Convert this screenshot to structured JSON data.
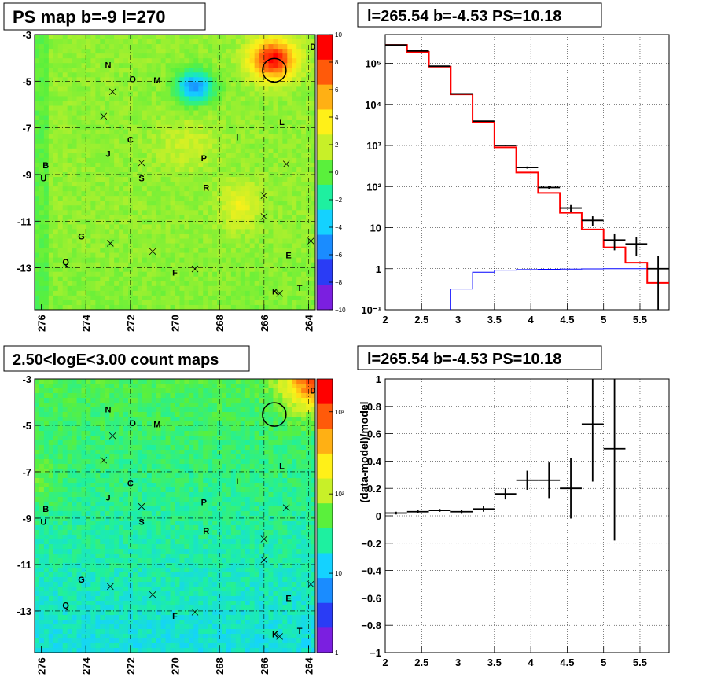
{
  "colors": {
    "data": "#000000",
    "model": "#ff0000",
    "source_component": "#0000ff",
    "colormap": [
      "#7b1fe0",
      "#2a3cf5",
      "#1a8cff",
      "#14d2ff",
      "#1ef0a0",
      "#5af03c",
      "#c8f028",
      "#fff018",
      "#ffb014",
      "#ff5a0a",
      "#ff0000"
    ]
  },
  "chart_data": [
    {
      "type": "heatmap",
      "title": "PS map b=-9 l=270",
      "colorbar_ticks": [
        "10",
        "8",
        "6",
        "4",
        "2",
        "0",
        "−2",
        "−4",
        "−6",
        "−8",
        "−10"
      ],
      "zlim": [
        -10,
        10
      ],
      "x_ticks": [
        "276",
        "274",
        "272",
        "270",
        "268",
        "266",
        "264"
      ],
      "y_ticks": [
        "-3",
        "-5",
        "-7",
        "-9",
        "-11",
        "-13"
      ],
      "xlim": [
        276.3,
        263.7
      ],
      "ylim": [
        -14.8,
        -3
      ],
      "sources": [
        {
          "label": "N",
          "l": 273.0,
          "b": -4.3
        },
        {
          "label": "O",
          "l": 271.9,
          "b": -4.9
        },
        {
          "label": "M",
          "l": 270.8,
          "b": -4.95
        },
        {
          "label": "C",
          "l": 272.0,
          "b": -7.5
        },
        {
          "label": "J",
          "l": 273.0,
          "b": -8.1
        },
        {
          "label": "I",
          "l": 267.2,
          "b": -7.4
        },
        {
          "label": "L",
          "l": 265.2,
          "b": -6.75
        },
        {
          "label": "P",
          "l": 268.7,
          "b": -8.3
        },
        {
          "label": "B",
          "l": 275.8,
          "b": -8.6
        },
        {
          "label": "U",
          "l": 275.9,
          "b": -9.15
        },
        {
          "label": "S",
          "l": 271.5,
          "b": -9.15
        },
        {
          "label": "R",
          "l": 268.6,
          "b": -9.55
        },
        {
          "label": "G",
          "l": 274.2,
          "b": -11.65
        },
        {
          "label": "Q",
          "l": 274.9,
          "b": -12.75
        },
        {
          "label": "E",
          "l": 264.9,
          "b": -12.45
        },
        {
          "label": "F",
          "l": 270.0,
          "b": -13.2
        },
        {
          "label": "K",
          "l": 265.5,
          "b": -14.0
        },
        {
          "label": "T",
          "l": 264.4,
          "b": -13.85
        },
        {
          "label": "D",
          "l": 263.8,
          "b": -3.5
        }
      ],
      "markers_x": [
        [
          272.8,
          -5.45
        ],
        [
          273.2,
          -6.5
        ],
        [
          271.5,
          -8.5
        ],
        [
          266.0,
          -9.9
        ],
        [
          265.0,
          -8.55
        ],
        [
          266.0,
          -10.8
        ],
        [
          272.9,
          -11.95
        ],
        [
          271.0,
          -12.3
        ],
        [
          269.1,
          -13.05
        ],
        [
          263.9,
          -11.85
        ],
        [
          265.3,
          -14.1
        ]
      ],
      "circle": {
        "l": 265.54,
        "b": -4.53
      }
    },
    {
      "type": "line",
      "title": "l=265.54 b=-4.53 PS=10.18",
      "yscale": "log",
      "xlim": [
        2,
        5.9
      ],
      "ylim": [
        0.1,
        500000
      ],
      "x_ticks": [
        "2",
        "2.5",
        "3",
        "3.5",
        "4",
        "4.5",
        "5",
        "5.5"
      ],
      "y_ticks": [
        "10⁻¹",
        "1",
        "10",
        "10²",
        "10³",
        "10⁴",
        "10⁵"
      ],
      "bin_edges": [
        2,
        2.3,
        2.6,
        2.9,
        3.2,
        3.5,
        3.8,
        4.1,
        4.4,
        4.7,
        5.0,
        5.3,
        5.6,
        5.9
      ],
      "series": [
        {
          "style": "points",
          "values": [
            280000,
            200000,
            85000,
            18000,
            3900,
            1000,
            290,
            95,
            30,
            15,
            5,
            4,
            1
          ],
          "errors": [
            600,
            500,
            300,
            140,
            60,
            30,
            17,
            10,
            5.5,
            3.9,
            2.2,
            2,
            1
          ]
        },
        {
          "style": "step",
          "values": [
            280000,
            190000,
            83000,
            17500,
            3700,
            900,
            220,
            70,
            23,
            9,
            3.3,
            1.4,
            0.45
          ]
        },
        {
          "style": "step",
          "values": [
            0,
            0,
            0.01,
            0.32,
            0.82,
            0.92,
            0.95,
            0.97,
            0.98,
            0.99,
            1.0,
            1.0,
            1.0
          ]
        }
      ]
    },
    {
      "type": "heatmap",
      "title": "2.50<logE<3.00 count maps",
      "colorbar_ticks": [
        "10³",
        "10²",
        "10",
        "1"
      ],
      "zscale": "log",
      "zlim": [
        1,
        2000
      ],
      "x_ticks": [
        "276",
        "274",
        "272",
        "270",
        "268",
        "266",
        "264"
      ],
      "y_ticks": [
        "-3",
        "-5",
        "-7",
        "-9",
        "-11",
        "-13"
      ],
      "xlim": [
        276.3,
        263.7
      ],
      "ylim": [
        -14.8,
        -3
      ],
      "circle": {
        "l": 265.54,
        "b": -4.53
      }
    },
    {
      "type": "scatter",
      "title": "l=265.54 b=-4.53 PS=10.18",
      "ylabel": "(data-model)/model",
      "xlim": [
        2,
        5.9
      ],
      "ylim": [
        -1,
        1
      ],
      "x_ticks": [
        "2",
        "2.5",
        "3",
        "3.5",
        "4",
        "4.5",
        "5",
        "5.5"
      ],
      "y_ticks": [
        "−1",
        "−0.8",
        "−0.6",
        "−0.4",
        "−0.2",
        "0",
        "0.2",
        "0.4",
        "0.6",
        "0.8",
        "1"
      ],
      "x": [
        2.15,
        2.45,
        2.75,
        3.05,
        3.35,
        3.65,
        3.95,
        4.25,
        4.55,
        4.85,
        5.15
      ],
      "y": [
        0.02,
        0.03,
        0.04,
        0.03,
        0.05,
        0.16,
        0.26,
        0.26,
        0.2,
        0.67,
        0.49
      ],
      "yerr": [
        0.01,
        0.01,
        0.01,
        0.015,
        0.02,
        0.04,
        0.07,
        0.13,
        0.22,
        0.42,
        0.67
      ]
    }
  ]
}
